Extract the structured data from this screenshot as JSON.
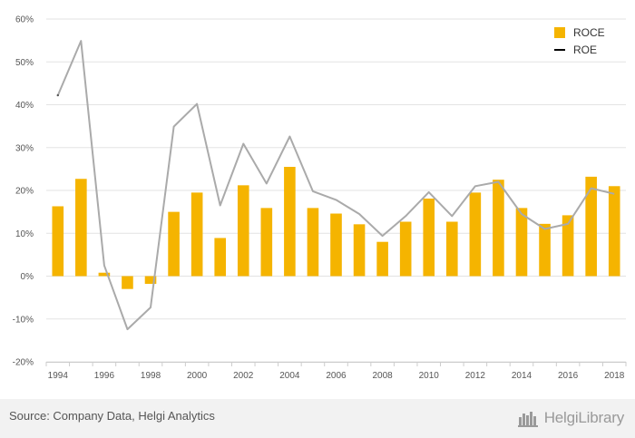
{
  "chart_data": {
    "type": "bar",
    "categories": [
      "1994",
      "1995",
      "1996",
      "1997",
      "1998",
      "1999",
      "2000",
      "2001",
      "2002",
      "2003",
      "2004",
      "2005",
      "2006",
      "2007",
      "2008",
      "2009",
      "2010",
      "2011",
      "2012",
      "2013",
      "2014",
      "2015",
      "2016",
      "2017",
      "2018"
    ],
    "series": [
      {
        "name": "ROCE",
        "type": "bar",
        "color": "#f5b400",
        "values": [
          16.3,
          22.7,
          0.8,
          -3.0,
          -1.8,
          15.0,
          19.5,
          8.9,
          21.2,
          15.9,
          25.5,
          15.9,
          14.6,
          12.1,
          8.0,
          12.7,
          18.1,
          12.7,
          19.5,
          22.5,
          15.9,
          12.2,
          14.2,
          23.2,
          21.0
        ]
      },
      {
        "name": "ROE",
        "type": "line",
        "color": "#aaaaaa",
        "values": [
          42.2,
          54.9,
          2.5,
          -12.4,
          -7.3,
          34.9,
          40.2,
          16.5,
          30.9,
          21.6,
          32.6,
          19.8,
          17.8,
          14.5,
          9.4,
          14.0,
          19.6,
          14.0,
          21.0,
          22.0,
          14.5,
          11.0,
          12.2,
          20.5,
          19.2
        ]
      }
    ],
    "ylim": [
      -20,
      60
    ],
    "yticks": [
      "-20%",
      "-10%",
      "0%",
      "10%",
      "20%",
      "30%",
      "40%",
      "50%",
      "60%"
    ],
    "xtick_labels": [
      "1994",
      "1996",
      "1998",
      "2000",
      "2002",
      "2004",
      "2006",
      "2008",
      "2010",
      "2012",
      "2014",
      "2016",
      "2018"
    ],
    "xlabel": "",
    "ylabel": "",
    "grid": true,
    "legend_position": "top-right",
    "title": ""
  },
  "legend": {
    "roce": "ROCE",
    "roe": "ROE"
  },
  "footer": {
    "source": "Source: Company Data, Helgi Analytics",
    "brand": "HelgiLibrary"
  }
}
